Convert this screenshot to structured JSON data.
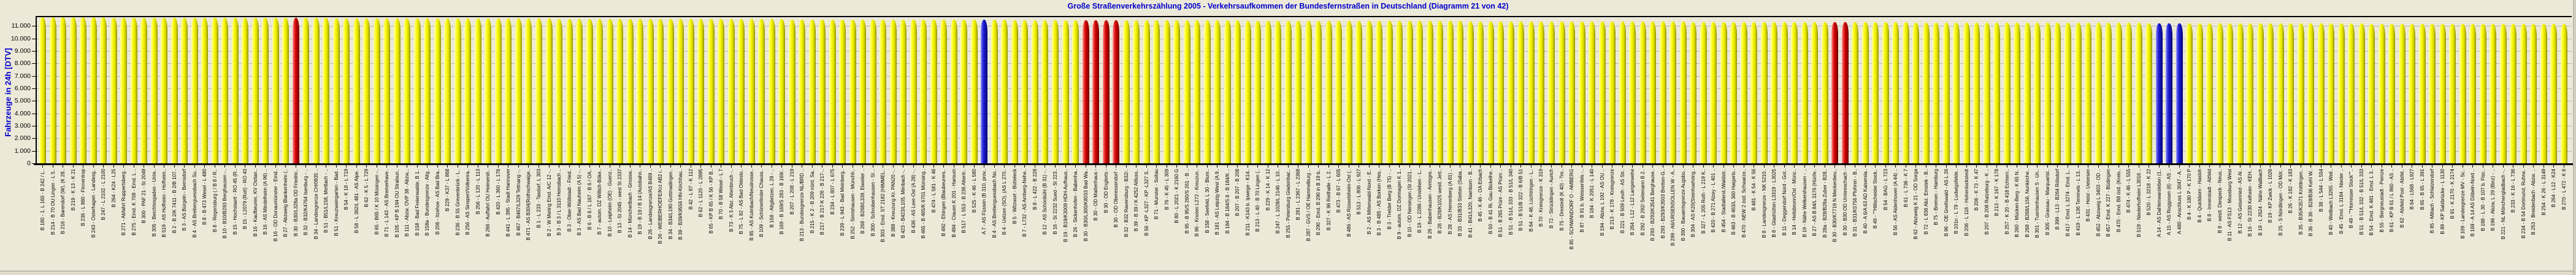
{
  "window": {
    "title": "Große Straßenverkehrszählung 2005 - Verkehrsaufkommen der Bundesfernstraßen in Deutschland (Diagramm 21 von 42)"
  },
  "colors": {
    "background": "#ECE9D8",
    "title_text": "#0000CD",
    "axis_title_text": "#0000CD",
    "tick_text": "#000000",
    "gridline": "#8A8A8A",
    "bar_yellow": "#F2F200",
    "bar_red": "#CC0000",
    "bar_blue": "#1818CC"
  },
  "chart_data": {
    "type": "bar",
    "title": "Große Straßenverkehrszählung 2005 - Verkehrsaufkommen der Bundesfernstraßen in Deutschland (Diagramm 21 von 42)",
    "xlabel": "",
    "ylabel": "Fahrzeuge in 24h [DTV]",
    "ylim": [
      0,
      11810
    ],
    "grid": "horizontal-dotted",
    "legend": "none",
    "bar_style": "3d-cylinder",
    "y_tick_labels": [
      "0",
      "1.000",
      "2.000",
      "3.000",
      "4.000",
      "5.000",
      "6.000",
      "7.000",
      "8.000",
      "9.000",
      "10.000",
      "11.000"
    ],
    "y_tick_values": [
      0,
      1000,
      2000,
      3000,
      4000,
      5000,
      6000,
      7000,
      8000,
      9000,
      10000,
      11000
    ],
    "x_label_note": "one rotated label per bar, values are estimated from bar heights (no data labels shown, all bars between ~11.150 and ~11.700 DTV, sorted descending)",
    "red_indices": [
      25,
      103,
      104,
      105,
      106,
      177,
      178
    ],
    "blue_indices": [
      93,
      209,
      210,
      211
    ],
    "categories": [
      "B 180 - 1. L 160 - B 242 / L..",
      "B 214 - B 70 OU Lingen - L 5..",
      "B 216 - Barendorf (W), (K 28..",
      "B 219 - K 13 - K 21",
      "B 236 - L 880 - Finnentrop",
      "B 243 - Osterhagen - Landesg..",
      "B 247 - L 2102 - L 2100",
      "B 264 - K24 - L25",
      "B 271 - Abfahrt Ruppertsberg..",
      "B 275 - Emd. K 708 - Emd. L ..",
      "B 300 - PAF 21 - St 2049",
      "B 305 - Berchtesgaden - Unte..",
      "B 519 - AS Hofheim - Hofheim..",
      "B 2 - B 2/K 7411 - B 2/B 107..",
      "B 3 - AS Bürgeln - Bernsdorf",
      "B 4 - AS Breitenguessbach Su..",
      "B 8 - B 473 Wesel - L 480",
      "B 8 - Regensburg ( / B 8 / R..",
      "B 10 - B10/B293 Berghausen -..",
      "B 15 - Hochstaett - RO 45 (R..",
      "B 15 - L2079 (Rott) - RO 43",
      "B 16 - Kaufbeuren, KV Osttan..",
      "B 16 - AS Mindelheim (A 96) ..",
      "B 16 - OD Donaumünster - Emd..",
      "B 27 - Abzweig Blankenheim (..",
      "B 30 - B30/L328a OD Friedric..",
      "B 32 - B32/K4764 Isenburg - ..",
      "B 34 - Landesgrenze CH/0835 ..",
      "B 51 - B51/L158, Mettlach - ..",
      "B 51 - Kreuzweingarten - Bad..",
      "B 54 - K 18 - L 719",
      "B 58 - L 362/L 481 - AS Alpe..",
      "B 62 - K 5 - L 729",
      "B 65 - B65 / K 10 Müsingen -..",
      "B 71 - L 143 - AS Bremerhave..",
      "B 105 - KP B 194 OU Stralsun..",
      "B 111 - Abzw. OVP 38 - Abzw,..",
      "B 158 - Bad Freienwalde, B 1..",
      "B 158a - Bundesgrenze - Altg..",
      "B 206 - Itzehoe - AS Bad Bra..",
      "B 229 - K37 - L 868",
      "B 236 - B 55 Grevenbrück - L..",
      "B 256 - AS Sinspert/Volkenra..",
      "B 256 - L 120 - L 113",
      "B 266 - Auffahrt OU Heimersh..",
      "B 420 - L 360 - L 176",
      "B 441 - L 395 - Stadt Hannover",
      "B 467 - B467/L329 Tettnang -..",
      "B 471 - AS B304(Rothschwaige..",
      "B 1 - L 233 - Tasdorf, L 303",
      "B 2 - W Mering Emd. A/C 12 -..",
      "B 3 - B 3 / L 3110 Hemsbach ..",
      "B 3 - Ober-Wöllstadt - Fried..",
      "B 3 - AS Bad Nauheim (A 5) -..",
      "B 6 - B 6 / L 167 - B 6 / OA..",
      "B 7 - autom. DZ Willich-Böke..",
      "B 10 - Leipheim (OE) - Guenz..",
      "B 13 - St 2045 - west St 2337",
      "B 14 - Müncherlbach - Grossw..",
      "B 19 - B 19 / B 14 (Autobahn..",
      "B 26 - Landesgrenze/AS B469 ..",
      "B 26 - WEIBERHOEFE/Krz AB2 i..",
      "B 34 - B34/L190 Gottmadingen..",
      "B 39 - B39/K9556 HN-Kirchhau..",
      "B 42 - L 87 - K 112",
      "B 62 - L 1120 - L 2895",
      "B 65 - KP B 65 / K 56 - KP B..",
      "B 70 - B 58 Wesel - L 7",
      "B 73 - K 5 Abz. Altenbruch -..",
      "B 75 - L 82 - AS Bad Oldeslo..",
      "B 85 - AS Kulmbach/Neudrosse..",
      "B 109 - Schönerlinder Chauss..",
      "B 158 - Altglietzen, L 28 - ..",
      "B 169 - B 169/S 283 - B 169/..",
      "B 207 - L 208 - L 219",
      "B 213 - Bundesgrenze NL/BRD ..",
      "B 215 - K 2 - B 209 nörd. Sa..",
      "B 217 - B 217-K 226 - B 217-..",
      "B 234 - L 807 - L 675",
      "B 239 - L 943 - Bad Meinberg..",
      "B 252 - Simtshausen - Münchh..",
      "B 268 - B268/L339, Eiweiler ..",
      "B 300 - Schrobenhausen - St ..",
      "B 303 - Emd. ST 2182 (HIMMEL..",
      "B 388 - Kreuzung Kr. PAN20 -..",
      "B 423 - B423/L105, Mimbach -..",
      "B 436 - AS Leer-Ost (A 28) -..",
      "B 465 - B 465/K 6701 Münsing..",
      "B 474 - L 581 - K 46",
      "B 492 - Ehingen (Blaubeurers..",
      "B 494 - Clauen K 201 - Harsum",
      "B 517 - L 553 - B 236 Altenh..",
      "B 525 - K 46 - L 580",
      "A 7 - AS Füssen (B 310, prov..",
      "B 4 - AS Breitenguessbach No..",
      "B 4 - Uelzen (SO), (AS L 270..",
      "B 5 - Witzwort - Bütteleck",
      "B 7 - L732 - AS Arnberg-Nehe..",
      "B 8 - L 422 - B 228",
      "B 12 - AS Schönbühl (B 31) -..",
      "B 16 - St 2232 Sued - St 223..",
      "B 19 - B19/K3009 HDH-Aufhaus..",
      "B 26 - Sickenhofen - Babenha..",
      "B 30 - B30/L300/K8033 Bad Wa..",
      "B 30 - OD Mattenhaus -",
      "B 30 - OD Englerts -",
      "B 30 - OD Oberessendorf -",
      "B 32 - B32 Ravensburg - B32/..",
      "B 39 - B 39 / K 4252 Altluss..",
      "B 56 - KP -L327 - KP -L327 S..",
      "B 71 - Munster - Soltau",
      "B 76 - K 45 - L 309",
      "B 80 - L 2021 - K 2160 G",
      "B 95 - B 95/S 260/S 261 - B ..",
      "B 96 - Knoten L272 - Kreuzun..",
      "B 158 - Seefeld, L 30 - Blum..",
      "B 181 - AS Leipzig-West (A 9..",
      "B 184 - B 184/S 8 - B 184/K ..",
      "B 207 - B 207 - B 208",
      "B 211 - K143 b. Ipwege - K14..",
      "B 213 - L 40 - B 70 Lingen (..",
      "B 229 - K 14 - K 12",
      "B 247 - L 1028/L 2146 - L 10..",
      "B 255 - Petersburg Gladenbac..",
      "B 281 - L 2367 - L 2368",
      "B 287 - GVS / OE Hammelburg ..",
      "B 290 - Emd. B 290 in B 19 b..",
      "B 327 - K 96 Reithalle - L 2..",
      "B 473 - B 67 - L 605",
      "B 486 - AS Rüsselsheim-Ost (..",
      "B 513 - L 806 - L 927",
      "B 2 - AS Mittenwald-Nord - E..",
      "B 3 - B 485 - AS Borken (Hes..",
      "B 3 - Trelder Berg (B 75) - ..",
      "B 9 - autom. DZ Dormagen K 1..",
      "B 10 - OD Nersingen (St 2021..",
      "B 19 - L 2286 / Unsleben - L..",
      "B 26 - Babenhausen - Amtsgre..",
      "B 28 - B28/K1025 westl. Jett..",
      "B 28 - AS Herrenberg (A 81) ..",
      "B 33 - B31/B33 Stetten (Saba..",
      "B 41 - B41/L320, Namborn - B..",
      "B 45 - K 46 - OA Erbach",
      "B 50 - B 41 Ri. Gau Bickelhe..",
      "B 51 - B 265 Prüm - AS Prüm ..",
      "B 51 - B 51/L 333 - B 51/L 340",
      "B 51 - B 51/B 322 - B 6/B 51",
      "B 64 - K 46, Lüchtringen - L..",
      "B 70 - Kreisgrenze - K 319",
      "B 72 - Strücklingen - Aurich",
      "B 75 - Drestedt (K 40) - Tre..",
      "B 85 - SCHWANDORF O - AMBERG",
      "B 87 - B 91 b. Weissenfels -..",
      "B 184 - K 2051 - L 140",
      "B 194 - Abzw, L 192 - AS OU ..",
      "B 213 - K 178 - Kreisgrenze",
      "B 221 - B 509 Leuth - AS Str..",
      "B 264 - L12 - L12 Langerwehe",
      "B 292 - B 292/ Seitenarm B 2..",
      "B 293 - B293/K3541 Berghause..",
      "B 293 - B293/K3503 Bretten-G..",
      "B 299 - A6/URSENSOLLEN W - A..",
      "B 300 - Bauamtsgrenze Augsbu..",
      "B 304 - AS K20(Steinhoehring..",
      "B 327 - L 205 Roth - L 219 K..",
      "B 420 - B 271 Alzey - L 401 ..",
      "B 454 - Stadtallend./Waldstr..",
      "B 463 - B 463/L 360 Haigerlo..",
      "B 470 - NEW 2 östl. Schwarze..",
      "B 481 - K 54 - K 56",
      "B 8 - Landesgrenze - NK 5210..",
      "B 8 - Glashütten L3319 - L3025",
      "B 11 - Deggendorf Nord - Got..",
      "B 14 - Heilsbronn/Ost - Münc..",
      "B 19 - Nähe Welkershausen - ..",
      "B 27 - AS B 84/L 3176 (Hünfe..",
      "B 28a - B28/B28a Zuber - B28..",
      "B 30 - B30/K7719 N Meckenbeu..",
      "B 30 - B30 OD Untereschach -",
      "B 31 - B31/K5756 Pfohren - B..",
      "B 40 - A 6/A 63 AD Kaisersla..",
      "B 49 - \"\"Hillscheider Stock..",
      "B 54 - BAG - L 723",
      "B 56 - AS Aldenhoven (A 44) ..",
      "B 61 - L 736 - K 7",
      "B 62 - Abzweig K 21 - OD Sorga",
      "B 72 - L 836 Abz. Emstek - B..",
      "B 75 - Bremen - Hamburg",
      "B 96 - OE Greifswald - AS L 26",
      "B 101n - L 79 - Ludwigsfelde..",
      "B 206 - L 116 - Hohenlockstedt",
      "B 206 - K 73 - K 47",
      "B 207 - B 208 Ratzeburg - K ..",
      "B 213 - K 167 - K 178",
      "B 257 - K 20 - B 418 Echtern..",
      "B 260 - Mücken-Berg - K 65 N..",
      "B 268 - B268/L156, Nunkirche..",
      "B 301 - Tuentenhausen S - Un..",
      "B 305 - Grassau - Marquartst..",
      "B 399 - L13 - B264 Rölsdorf",
      "B 417 - Emd. L 3274 - Emd. L..",
      "B 419 - L 136 Temmels - L 13..",
      "B 431 - Heist - Uetersen",
      "B 452 - Abzweig L 3403 - OD ..",
      "B 457 - Emd. K 227 - Büdingen",
      "B 470 - Emd. B8 östl. (Kreis..",
      "B 474 - K 46 - L 555",
      "B 519 - Niederhofheim L3016 ..",
      "B 520 - L 3218 - K 22",
      "A 14 - AS Dahlenwarsleben (1..",
      "A 15 - AS Roggosen (6) - AS ..",
      "A 480 - Anschluss L 3047 - A..",
      "B 4 - K 180 P - K 170 P",
      "B 4 - Quickborn - Hasloh",
      "B 8 - Innenstadt - Altfeld",
      "B 8 - westl. Diespeck - Neus..",
      "B 11 - AS FS13 - Moosburg West",
      "B 12 - AS Geisenried - AS Al..",
      "B 16 - St 2230 Kelheim - KEH..",
      "B 19 - L 2624 - Nähe Wallbach",
      "B 19 - KP Zwick - L 1026",
      "B 25 - S Nördlingen - OD Möt..",
      "B 26 - K 182 - K 183",
      "B 35 - B35/K3571 Knittlingen..",
      "B 36 - B 36 - B28/B36 Kehl W..",
      "B 38 - L 544 - L 554",
      "B 40 - Weilbach L3265 - Weil..",
      "B 45 - Emd. L 3184 - Nieder ..",
      "B 49 - \"\"Horresser Stock\"\"..",
      "B 51 - B 51/L 332 - B 51/L 333",
      "B 54 - Emd. K 481 - Emd. L 3..",
      "B 55 - Bergneustadt - Pernze",
      "B 61 - KP B 61 / L 860 - AS ..",
      "B 62 - Alsfeld Post - Alsfel..",
      "B 64 - L568 - L927",
      "B 65 - B 65 - L 391",
      "B 85 - Miltach - Schlatzendorf",
      "B 89 - KP Salzbrücke - L 1130",
      "B 91 - K 2170 - K 2174",
      "B 109 - Landesgrenze MV - Sc..",
      "B 169 - A 14 AS Döbeln-Nord ..",
      "B 188 - L 30 - B 107 b. Fisc..",
      "B 196 - Abzw, L 29 (Binz) - ..",
      "B 221 - NL Mönchengladbach -..",
      "B 233 - K 16 - L 736",
      "B 234 - B 54 Dortmund, Ruhrw..",
      "B 253 - Breidenbach - Abzw. ..",
      "B 254 - K 26 - L 3149",
      "B 264 - L12 - K24",
      "B 270 - L 472 - K 6"
    ],
    "values": [
      11700,
      11698,
      11696,
      11694,
      11692,
      11689,
      11687,
      11685,
      11683,
      11681,
      11678,
      11676,
      11674,
      11672,
      11670,
      11667,
      11665,
      11663,
      11661,
      11659,
      11656,
      11654,
      11652,
      11650,
      11648,
      11645,
      11643,
      11641,
      11639,
      11637,
      11634,
      11632,
      11630,
      11628,
      11626,
      11623,
      11621,
      11619,
      11617,
      11615,
      11612,
      11610,
      11608,
      11606,
      11604,
      11601,
      11599,
      11597,
      11595,
      11593,
      11590,
      11588,
      11586,
      11584,
      11582,
      11579,
      11577,
      11575,
      11573,
      11571,
      11568,
      11566,
      11564,
      11562,
      11560,
      11557,
      11555,
      11553,
      11551,
      11549,
      11546,
      11544,
      11542,
      11540,
      11538,
      11535,
      11533,
      11531,
      11529,
      11527,
      11524,
      11522,
      11520,
      11518,
      11516,
      11513,
      11511,
      11509,
      11507,
      11505,
      11502,
      11500,
      11498,
      11496,
      11494,
      11491,
      11489,
      11487,
      11485,
      11483,
      11480,
      11478,
      11476,
      11474,
      11472,
      11469,
      11467,
      11465,
      11463,
      11461,
      11458,
      11456,
      11454,
      11452,
      11450,
      11447,
      11445,
      11443,
      11441,
      11439,
      11436,
      11434,
      11432,
      11430,
      11428,
      11425,
      11423,
      11421,
      11419,
      11417,
      11414,
      11412,
      11410,
      11408,
      11406,
      11403,
      11401,
      11399,
      11397,
      11395,
      11392,
      11390,
      11388,
      11386,
      11384,
      11381,
      11379,
      11377,
      11375,
      11373,
      11370,
      11368,
      11366,
      11364,
      11362,
      11359,
      11357,
      11355,
      11353,
      11351,
      11348,
      11346,
      11344,
      11342,
      11340,
      11337,
      11335,
      11333,
      11331,
      11329,
      11326,
      11324,
      11322,
      11320,
      11318,
      11315,
      11313,
      11311,
      11309,
      11307,
      11304,
      11302,
      11300,
      11298,
      11296,
      11293,
      11291,
      11289,
      11287,
      11285,
      11282,
      11280,
      11278,
      11276,
      11274,
      11271,
      11269,
      11267,
      11265,
      11263,
      11260,
      11258,
      11256,
      11254,
      11252,
      11249,
      11247,
      11245,
      11243,
      11241,
      11238,
      11236,
      11234,
      11232,
      11230,
      11227,
      11225,
      11223,
      11221,
      11219,
      11216,
      11214,
      11212,
      11210,
      11208,
      11205,
      11203,
      11201,
      11199,
      11197,
      11194,
      11192,
      11190,
      11188,
      11186,
      11183,
      11181,
      11179,
      11177,
      11175,
      11172,
      11170,
      11168,
      11166,
      11164,
      11161,
      11159,
      11157,
      11155,
      11153
    ]
  }
}
